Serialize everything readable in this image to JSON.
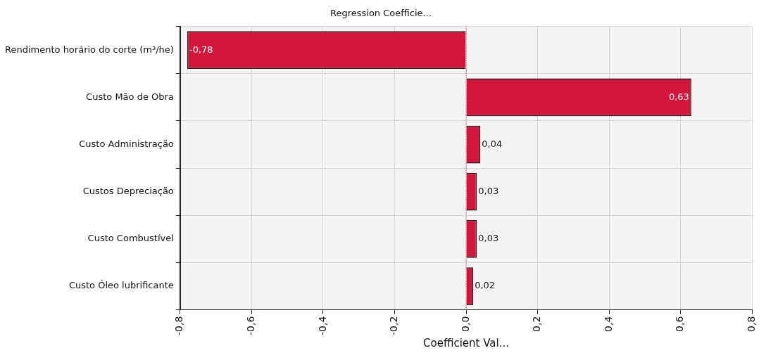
{
  "chart_data": {
    "type": "bar",
    "orientation": "horizontal",
    "title": "Regression Coefficie...",
    "xlabel": "Coefficient Val...",
    "categories": [
      "Rendimento horário do corte (m³/he)",
      "Custo Mão de Obra",
      "Custo Administração",
      "Custos Depreciação",
      "Custo Combustível",
      "Custo Óleo lubrificante"
    ],
    "values": [
      -0.78,
      0.63,
      0.04,
      0.03,
      0.03,
      0.02
    ],
    "value_labels": [
      "-0,78",
      "0,63",
      "0,04",
      "0,03",
      "0,03",
      "0,02"
    ],
    "color": "#d4163c",
    "xlim": [
      -0.8,
      0.8
    ],
    "xticks": [
      {
        "value": -0.8,
        "label": "-0,8"
      },
      {
        "value": -0.6,
        "label": "-0,6"
      },
      {
        "value": -0.4,
        "label": "-0,4"
      },
      {
        "value": -0.2,
        "label": "-0,2"
      },
      {
        "value": 0,
        "label": "0,0"
      },
      {
        "value": 0.2,
        "label": "0,2"
      },
      {
        "value": 0.4,
        "label": "0,4"
      },
      {
        "value": 0.6,
        "label": "0,6"
      },
      {
        "value": 0.8,
        "label": "0,8"
      }
    ],
    "ref_lines": [
      {
        "axis": "x",
        "value": 0,
        "color": "#c0143c",
        "line_style": "dotted"
      }
    ],
    "grid": true,
    "legend": false
  }
}
